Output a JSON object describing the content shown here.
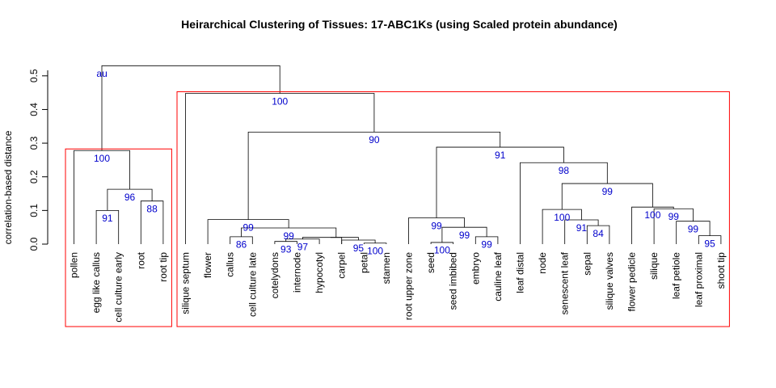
{
  "chart_data": {
    "type": "dendrogram",
    "title": "Heirarchical Clustering of Tissues: 17-ABC1Ks (using Scaled protein abundance)",
    "ylabel": "correlation-based distance",
    "ylim": [
      0,
      0.55
    ],
    "yticks": [
      0.0,
      0.1,
      0.2,
      0.3,
      0.4,
      0.5
    ],
    "ytick_labels": [
      "0.0",
      "0.1",
      "0.2",
      "0.3",
      "0.4",
      "0.5"
    ],
    "root_label": "au",
    "leaves": [
      "pollen",
      "egg like callus",
      "cell culture early",
      "root",
      "root tip",
      "silique septum",
      "flower",
      "callus",
      "cell culture late",
      "cotelydons",
      "internode",
      "hypocotyl",
      "carpel",
      "petal",
      "stamen",
      "root upper zone",
      "seed",
      "seed imbibed",
      "embryo",
      "cauline leaf",
      "leaf distal",
      "node",
      "senescent leaf",
      "sepal",
      "silique valves",
      "flower pedicle",
      "silique",
      "leaf petiole",
      "leaf proximal",
      "shoot tip"
    ],
    "merges": [
      {
        "a": "L13",
        "b": "L14",
        "height": 0.003,
        "support": "100"
      },
      {
        "a": "L9",
        "b": "L10",
        "height": 0.008,
        "support": "93"
      },
      {
        "a": "L12",
        "b": "M0",
        "height": 0.012,
        "support": "95"
      },
      {
        "a": "M1",
        "b": "L11",
        "height": 0.015,
        "support": "97"
      },
      {
        "a": "L16",
        "b": "L17",
        "height": 0.005,
        "support": "100"
      },
      {
        "a": "L7",
        "b": "L8",
        "height": 0.022,
        "support": "86"
      },
      {
        "a": "M3",
        "b": "M2",
        "height": 0.02,
        "support": ""
      },
      {
        "a": "L18",
        "b": "L19",
        "height": 0.022,
        "support": "99"
      },
      {
        "a": "L28",
        "b": "L29",
        "height": 0.025,
        "support": "95"
      },
      {
        "a": "M6",
        "b": "L12",
        "height": 0.02,
        "support": ""
      },
      {
        "a": "L23",
        "b": "L24",
        "height": 0.055,
        "support": "84"
      },
      {
        "a": "M8",
        "b": "L27",
        "height": 0.068,
        "support": "99"
      },
      {
        "a": "L22",
        "b": "M10",
        "height": 0.072,
        "support": "91"
      },
      {
        "a": "M5",
        "b": "M9",
        "height": 0.048,
        "support": "99"
      },
      {
        "a": "M4",
        "b": "M7",
        "height": 0.05,
        "support": "99"
      },
      {
        "a": "L6",
        "b": "M13",
        "height": 0.073,
        "support": "99"
      },
      {
        "a": "L15",
        "b": "M14",
        "height": 0.078,
        "support": "99"
      },
      {
        "a": "L1",
        "b": "L2",
        "height": 0.1,
        "support": "91"
      },
      {
        "a": "L21",
        "b": "M12",
        "height": 0.103,
        "support": "100"
      },
      {
        "a": "M11",
        "b": "L26",
        "height": 0.105,
        "support": "99"
      },
      {
        "a": "L25",
        "b": "M19",
        "height": 0.11,
        "support": "100"
      },
      {
        "a": "L3",
        "b": "L4",
        "height": 0.128,
        "support": "88"
      },
      {
        "a": "M17",
        "b": "M21",
        "height": 0.163,
        "support": "96"
      },
      {
        "a": "M18",
        "b": "M20",
        "height": 0.18,
        "support": "99"
      },
      {
        "a": "L20",
        "b": "M23",
        "height": 0.242,
        "support": "98"
      },
      {
        "a": "L0",
        "b": "M22",
        "height": 0.278,
        "support": "100"
      },
      {
        "a": "M16",
        "b": "M24",
        "height": 0.288,
        "support": "91"
      },
      {
        "a": "M15",
        "b": "M26",
        "height": 0.333,
        "support": "90"
      },
      {
        "a": "L5",
        "b": "M27",
        "height": 0.448,
        "support": "100"
      },
      {
        "a": "M25",
        "b": "M28",
        "height": 0.53,
        "support": ""
      }
    ],
    "clusters": [
      {
        "leaves": [
          "pollen",
          "egg like callus",
          "cell culture early",
          "root",
          "root tip"
        ],
        "color": "#ff0000"
      },
      {
        "leaves": [
          "silique septum",
          "flower",
          "callus",
          "cell culture late",
          "cotelydons",
          "internode",
          "hypocotyl",
          "carpel",
          "petal",
          "stamen",
          "root upper zone",
          "seed",
          "seed imbibed",
          "embryo",
          "cauline leaf",
          "leaf distal",
          "node",
          "senescent leaf",
          "sepal",
          "silique valves",
          "flower pedicle",
          "silique",
          "leaf petiole",
          "leaf proximal",
          "shoot tip"
        ],
        "color": "#ff0000"
      }
    ],
    "colors": {
      "branch": "#000000",
      "support": "#0000cc",
      "cluster_box": "#ff0000"
    }
  }
}
